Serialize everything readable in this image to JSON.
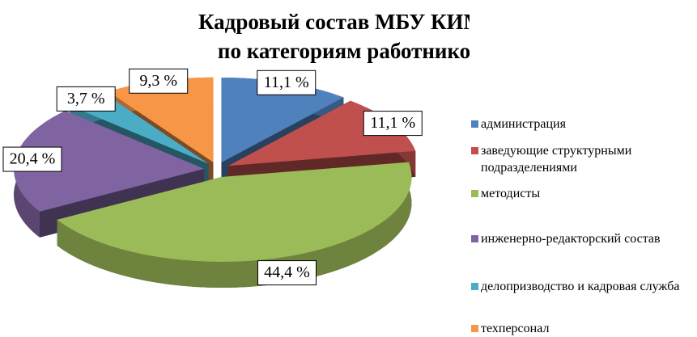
{
  "chart_data": {
    "type": "pie3d",
    "title": [
      "Кадровый состав МБУ КИМЦ",
      "по категориям работников"
    ],
    "categories": [
      "администрация",
      "заведующие структурными подразделениями",
      "методисты",
      "инженерно-редакторский состав",
      "делопризводство и кадровая служба",
      "техперсонал"
    ],
    "values": [
      11.1,
      11.1,
      44.4,
      20.4,
      3.7,
      9.3
    ],
    "value_labels": [
      "11,1 %",
      "11,1 %",
      "44,4 %",
      "20,4 %",
      "3,7 %",
      "9,3 %"
    ],
    "colors": [
      "#4f81bd",
      "#c0504d",
      "#9bbb59",
      "#8064a2",
      "#4bacc6",
      "#f79646"
    ],
    "legend": "right"
  }
}
